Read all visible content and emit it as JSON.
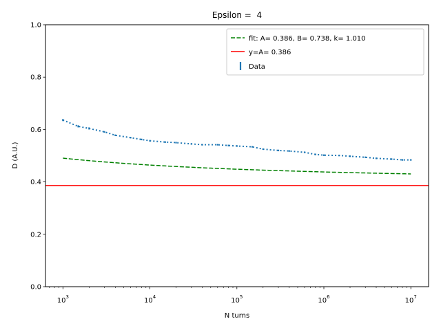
{
  "chart_data": {
    "type": "line",
    "title": "Epsilon =  4",
    "xlabel": "N turns",
    "ylabel": "D (A.U.)",
    "xscale": "log",
    "xlim": [
      630,
      16000000
    ],
    "ylim": [
      0.0,
      1.0
    ],
    "x_ticks": [
      1000,
      10000,
      100000,
      1000000,
      10000000
    ],
    "x_tick_labels": [
      {
        "base": "10",
        "exp": "3"
      },
      {
        "base": "10",
        "exp": "4"
      },
      {
        "base": "10",
        "exp": "5"
      },
      {
        "base": "10",
        "exp": "6"
      },
      {
        "base": "10",
        "exp": "7"
      }
    ],
    "y_ticks": [
      "0.0",
      "0.2",
      "0.4",
      "0.6",
      "0.8",
      "1.0"
    ],
    "grid": false,
    "legend_position": "top-right",
    "series": [
      {
        "name": "fit: A= 0.386, B= 0.738, k= 1.010",
        "style": "dashed",
        "color": "#008000",
        "fit_params": {
          "A": 0.386,
          "B": 0.738,
          "k": 1.01
        }
      },
      {
        "name": "y=A= 0.386",
        "style": "solid",
        "color": "#ff0000",
        "y": 0.386
      },
      {
        "name": "Data",
        "style": "errorbar",
        "color": "#1f77b4",
        "x": [
          1000,
          1500,
          2000,
          3000,
          4000,
          6000,
          8000,
          10000,
          15000,
          20000,
          30000,
          40000,
          60000,
          80000,
          100000,
          150000,
          200000,
          300000,
          400000,
          600000,
          800000,
          1000000,
          1500000,
          2000000,
          3000000,
          4000000,
          6000000,
          8000000,
          10000000
        ],
        "y": [
          0.636,
          0.612,
          0.604,
          0.591,
          0.578,
          0.569,
          0.562,
          0.557,
          0.552,
          0.55,
          0.545,
          0.542,
          0.542,
          0.539,
          0.537,
          0.534,
          0.525,
          0.52,
          0.518,
          0.513,
          0.505,
          0.502,
          0.501,
          0.498,
          0.494,
          0.49,
          0.487,
          0.484,
          0.484
        ],
        "err": [
          0.004,
          0.004,
          0.004,
          0.003,
          0.003,
          0.003,
          0.003,
          0.003,
          0.003,
          0.003,
          0.003,
          0.003,
          0.003,
          0.003,
          0.003,
          0.003,
          0.003,
          0.003,
          0.003,
          0.003,
          0.003,
          0.003,
          0.003,
          0.003,
          0.003,
          0.003,
          0.003,
          0.003,
          0.003
        ]
      }
    ]
  }
}
